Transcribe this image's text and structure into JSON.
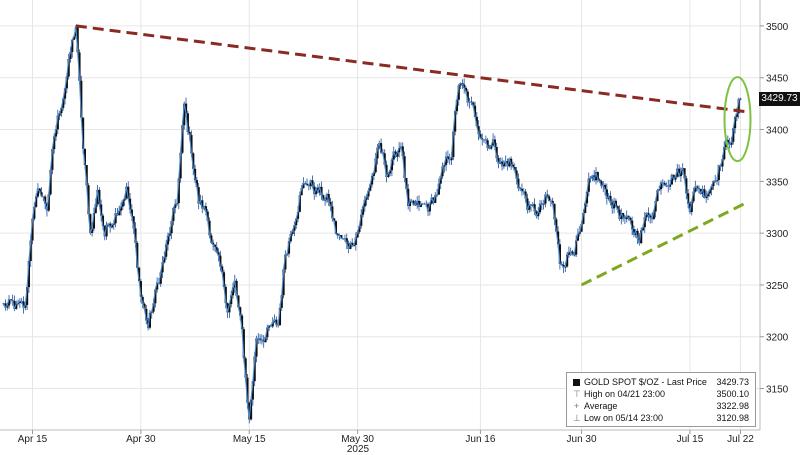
{
  "chart_data": {
    "type": "candlestick",
    "title": "",
    "xlabel": "",
    "ylabel": "",
    "x_tick_labels": [
      "Apr 15",
      "Apr 30",
      "May 15",
      "May 30",
      "Jun 16",
      "Jun 30",
      "Jul 15",
      "Jul 22"
    ],
    "year_label": "2025",
    "y_ticks": [
      3150,
      3200,
      3250,
      3300,
      3350,
      3400,
      3450,
      3500
    ],
    "ylim": [
      3110,
      3525
    ],
    "grid": true,
    "legend_position": "bottom-right",
    "price_path": [
      [
        "Apr 11",
        3230
      ],
      [
        "Apr 14",
        3225
      ],
      [
        "Apr 15",
        3320
      ],
      [
        "Apr 16",
        3340
      ],
      [
        "Apr 17",
        3325
      ],
      [
        "Apr 18",
        3390
      ],
      [
        "Apr 21",
        3500
      ],
      [
        "Apr 22",
        3380
      ],
      [
        "Apr 23",
        3300
      ],
      [
        "Apr 24",
        3340
      ],
      [
        "Apr 25",
        3300
      ],
      [
        "Apr 28",
        3345
      ],
      [
        "Apr 29",
        3300
      ],
      [
        "Apr 30",
        3240
      ],
      [
        "May 1",
        3210
      ],
      [
        "May 2",
        3240
      ],
      [
        "May 5",
        3330
      ],
      [
        "May 6",
        3420
      ],
      [
        "May 7",
        3380
      ],
      [
        "May 8",
        3330
      ],
      [
        "May 9",
        3320
      ],
      [
        "May 12",
        3230
      ],
      [
        "May 13",
        3250
      ],
      [
        "May 14",
        3200
      ],
      [
        "May 15",
        3120
      ],
      [
        "May 16",
        3200
      ],
      [
        "May 19",
        3210
      ],
      [
        "May 20",
        3280
      ],
      [
        "May 21",
        3310
      ],
      [
        "May 22",
        3340
      ],
      [
        "May 23",
        3350
      ],
      [
        "May 26",
        3330
      ],
      [
        "May 27",
        3300
      ],
      [
        "May 28",
        3290
      ],
      [
        "May 29",
        3290
      ],
      [
        "May 30",
        3305
      ],
      [
        "Jun 2",
        3380
      ],
      [
        "Jun 3",
        3360
      ],
      [
        "Jun 4",
        3370
      ],
      [
        "Jun 5",
        3390
      ],
      [
        "Jun 6",
        3320
      ],
      [
        "Jun 9",
        3325
      ],
      [
        "Jun 10",
        3340
      ],
      [
        "Jun 11",
        3360
      ],
      [
        "Jun 12",
        3380
      ],
      [
        "Jun 13",
        3445
      ],
      [
        "Jun 16",
        3400
      ],
      [
        "Jun 17",
        3390
      ],
      [
        "Jun 18",
        3385
      ],
      [
        "Jun 19",
        3365
      ],
      [
        "Jun 20",
        3370
      ],
      [
        "Jun 23",
        3320
      ],
      [
        "Jun 24",
        3320
      ],
      [
        "Jun 25",
        3330
      ],
      [
        "Jun 26",
        3325
      ],
      [
        "Jun 27",
        3270
      ],
      [
        "Jun 30",
        3300
      ],
      [
        "Jul 1",
        3340
      ],
      [
        "Jul 2",
        3355
      ],
      [
        "Jul 3",
        3340
      ],
      [
        "Jul 4",
        3335
      ],
      [
        "Jul 7",
        3300
      ],
      [
        "Jul 8",
        3300
      ],
      [
        "Jul 9",
        3315
      ],
      [
        "Jul 10",
        3325
      ],
      [
        "Jul 11",
        3355
      ],
      [
        "Jul 14",
        3360
      ],
      [
        "Jul 15",
        3330
      ],
      [
        "Jul 16",
        3345
      ],
      [
        "Jul 17",
        3340
      ],
      [
        "Jul 18",
        3350
      ],
      [
        "Jul 21",
        3400
      ],
      [
        "Jul 22",
        3429.73
      ]
    ],
    "annotations": {
      "resistance_line": [
        [
          "Apr 21",
          3500
        ],
        [
          "Jul 23",
          3417
        ]
      ],
      "support_line": [
        [
          "Jun 30",
          3250
        ],
        [
          "Jul 23",
          3330
        ]
      ],
      "highlight_ellipse_center": [
        "Jul 22",
        3410
      ]
    },
    "legend": {
      "series_name": "GOLD SPOT $/OZ - Last Price",
      "last_price": "3429.73",
      "high_label": "High on 04/21 23:00",
      "high_value": "3500.10",
      "average_label": "Average",
      "average_value": "3322.98",
      "low_label": "Low on 05/14 23:00",
      "low_value": "3120.98"
    },
    "last_price_label": "3429.73",
    "colors": {
      "candle_body": "#111111",
      "wick": "#1f4e9c",
      "price_line": "#4a90d9",
      "resistance": "#8b2a22",
      "support": "#7fa821",
      "highlight": "#7fc241",
      "grid": "#e6e6e6"
    }
  }
}
